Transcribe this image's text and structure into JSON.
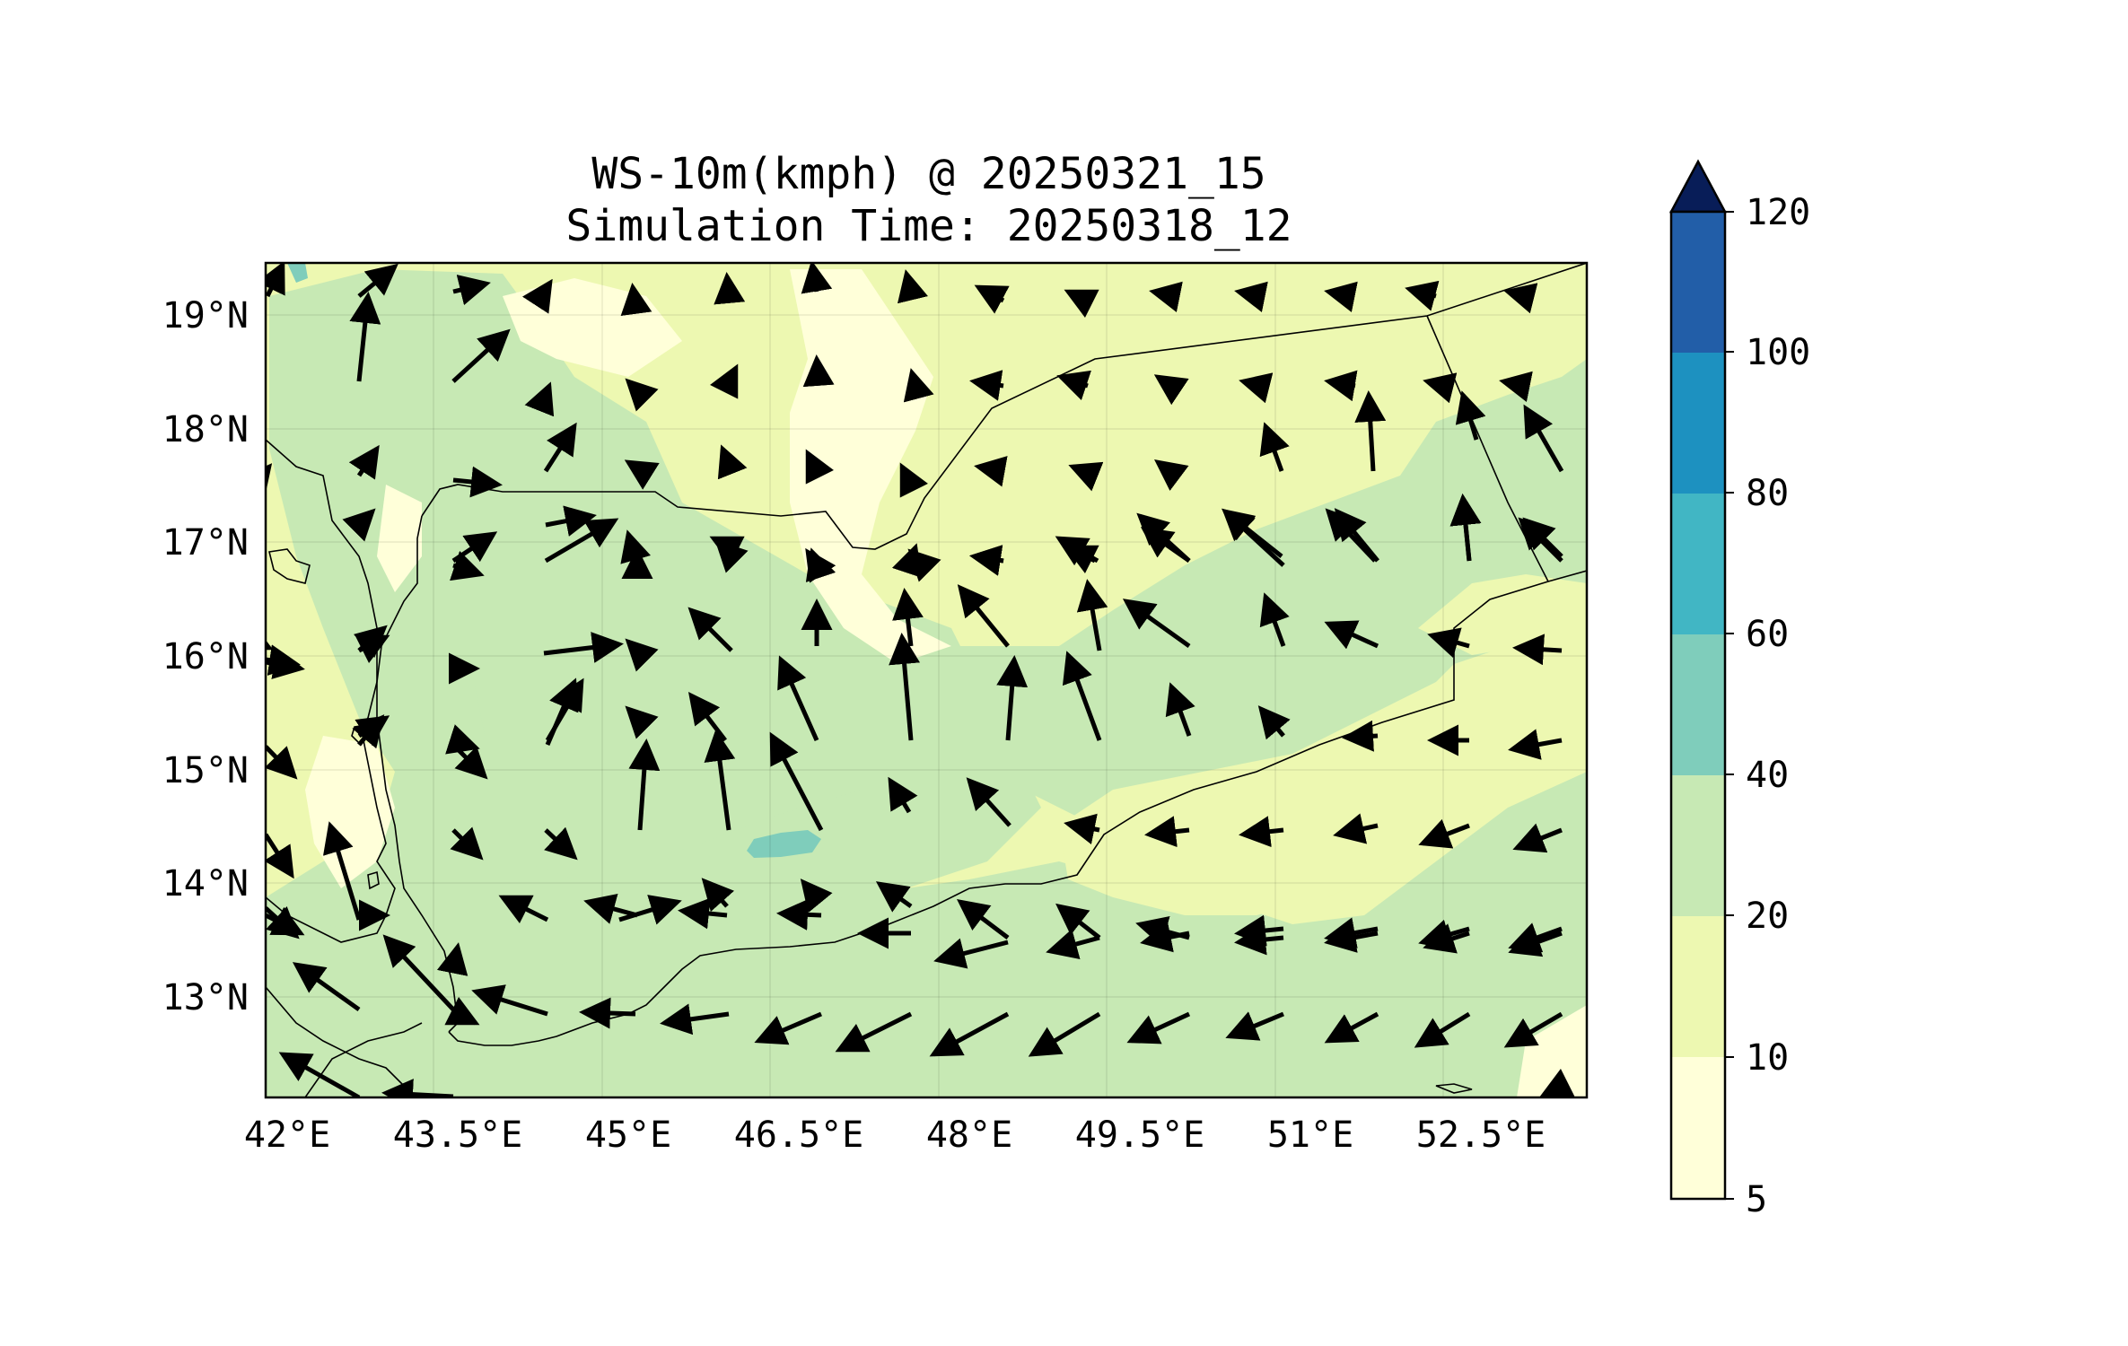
{
  "title": {
    "line1": "WS-10m(kmph) @ 20250321_15",
    "line2": "Simulation Time: 20250318_12"
  },
  "map": {
    "lon_range": [
      42.0,
      53.8
    ],
    "lat_range": [
      12.1,
      19.45
    ],
    "lon_ticks": [
      "42°E",
      "43.5°E",
      "45°E",
      "46.5°E",
      "48°E",
      "49.5°E",
      "51°E",
      "52.5°E"
    ],
    "lon_tick_values": [
      42.0,
      43.5,
      45.0,
      46.5,
      48.0,
      49.5,
      51.0,
      52.5
    ],
    "lat_ticks": [
      "19°N",
      "18°N",
      "17°N",
      "16°N",
      "15°N",
      "14°N",
      "13°N"
    ],
    "lat_tick_values": [
      19,
      18,
      17,
      16,
      15,
      14,
      13
    ],
    "gridlines": true
  },
  "colorbar": {
    "levels": [
      "5",
      "10",
      "20",
      "40",
      "60",
      "80",
      "100",
      "120"
    ],
    "colors": [
      "#ffffd9",
      "#edf8b1",
      "#c7e9b4",
      "#7fcdbb",
      "#41b6c4",
      "#1d91c0",
      "#225ea8",
      "#0c2c84"
    ],
    "extend": "max",
    "extend_color": "#081d58"
  }
}
